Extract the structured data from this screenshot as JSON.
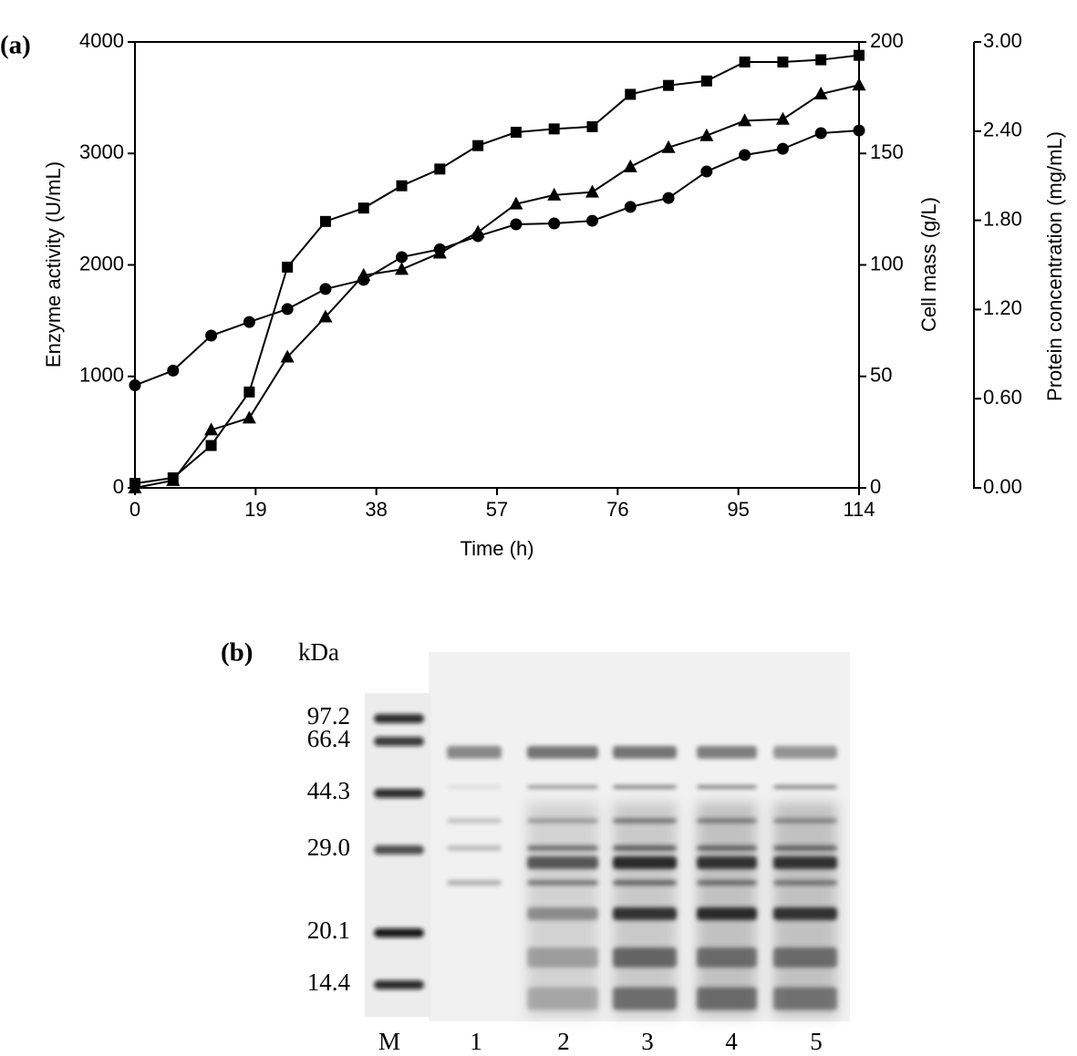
{
  "chart_data": {
    "type": "line",
    "label": "(a)",
    "x_label": "Time (h)",
    "y_label": "Enzyme activity (U/mL)",
    "y2_label": "Cell mass (g/L)",
    "y3_label": "Protein concentration (mg/mL)",
    "x": [
      0,
      6,
      12,
      18,
      24,
      30,
      36,
      42,
      48,
      54,
      60,
      66,
      72,
      78,
      84,
      90,
      96,
      102,
      108,
      114
    ],
    "series": [
      {
        "color": "#000000",
        "marker": "square",
        "axis": "y",
        "values": [
          40,
          90,
          380,
          860,
          1980,
          2390,
          2510,
          2710,
          2860,
          3070,
          3190,
          3220,
          3240,
          3530,
          3610,
          3650,
          3820,
          3820,
          3840,
          3880
        ]
      },
      {
        "color": "#000000",
        "marker": "circle",
        "axis": "y2",
        "values": [
          46,
          52.6,
          68.3,
          74.4,
          80.2,
          89.2,
          93.3,
          103.5,
          107,
          112.9,
          118.2,
          118.6,
          119.8,
          126,
          130,
          141.9,
          149.3,
          152.1,
          159.1,
          160.3
        ]
      },
      {
        "color": "#000000",
        "marker": "triangle",
        "axis": "y3",
        "values": [
          0,
          0.05,
          0.39,
          0.47,
          0.88,
          1.15,
          1.43,
          1.47,
          1.58,
          1.72,
          1.91,
          1.97,
          1.99,
          2.16,
          2.29,
          2.37,
          2.47,
          2.48,
          2.65,
          2.71
        ]
      }
    ],
    "xlim": [
      0,
      114
    ],
    "xticks": [
      0,
      19,
      38,
      57,
      76,
      95,
      114
    ],
    "ylim": [
      0,
      4000
    ],
    "yticks": [
      0,
      1000,
      2000,
      3000,
      4000
    ],
    "y2lim": [
      0,
      200
    ],
    "y2ticks": [
      0,
      50,
      100,
      150,
      200
    ],
    "y3lim": [
      0,
      3
    ],
    "y3ticks": [
      {
        "value": 0,
        "label": "0.00"
      },
      {
        "value": 0.6,
        "label": "0.60"
      },
      {
        "value": 1.2,
        "label": "1.20"
      },
      {
        "value": 1.8,
        "label": "1.80"
      },
      {
        "value": 2.4,
        "label": "2.40"
      },
      {
        "value": 3,
        "label": "3.00"
      }
    ],
    "grid": false
  },
  "gel": {
    "label": "(b)",
    "unit": "kDa",
    "markers": [
      "97.2",
      "66.4",
      "44.3",
      "29.0",
      "20.1",
      "14.4"
    ],
    "lanes": [
      "M",
      "1",
      "2",
      "3",
      "4",
      "5"
    ]
  }
}
